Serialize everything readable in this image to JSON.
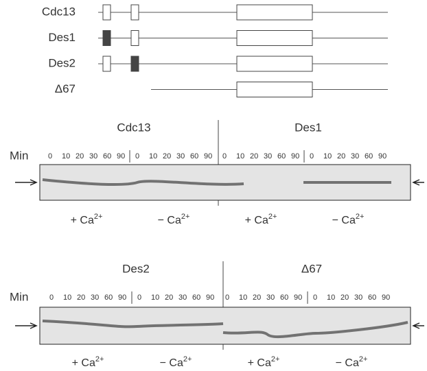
{
  "constructs": [
    {
      "label": "Cdc13"
    },
    {
      "label": "Des1"
    },
    {
      "label": "Des2"
    },
    {
      "label": "Δ67"
    }
  ],
  "panels": [
    {
      "min_label": "Min",
      "groups": [
        {
          "label": "Cdc13",
          "conditions": [
            {
              "label": "+ Ca",
              "sup": "2+",
              "times": [
                0,
                10,
                20,
                30,
                60,
                90
              ]
            },
            {
              "label": "− Ca",
              "sup": "2+",
              "times": [
                0,
                10,
                20,
                30,
                60,
                90
              ]
            }
          ]
        },
        {
          "label": "Des1",
          "conditions": [
            {
              "label": "+ Ca",
              "sup": "2+",
              "times": [
                0,
                10,
                20,
                30,
                60,
                90
              ]
            },
            {
              "label": "− Ca",
              "sup": "2+",
              "times": [
                0,
                10,
                20,
                30,
                60,
                90
              ]
            }
          ]
        }
      ]
    },
    {
      "min_label": "Min",
      "groups": [
        {
          "label": "Des2",
          "conditions": [
            {
              "label": "+ Ca",
              "sup": "2+",
              "times": [
                0,
                10,
                20,
                30,
                60,
                90
              ]
            },
            {
              "label": "− Ca",
              "sup": "2+",
              "times": [
                0,
                10,
                20,
                30,
                60,
                90
              ]
            }
          ]
        },
        {
          "label": "Δ67",
          "conditions": [
            {
              "label": "+ Ca",
              "sup": "2+",
              "times": [
                0,
                10,
                20,
                30,
                60,
                90
              ]
            },
            {
              "label": "− Ca",
              "sup": "2+",
              "times": [
                0,
                10,
                20,
                30,
                60,
                90
              ]
            }
          ]
        }
      ]
    }
  ]
}
